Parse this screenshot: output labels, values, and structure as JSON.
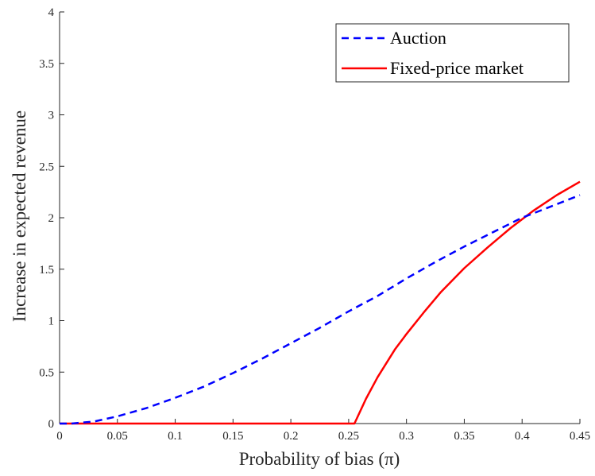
{
  "chart_data": {
    "type": "line",
    "xlabel": "Probability of bias (π)",
    "ylabel": "Increase in expected revenue",
    "xlim": [
      0,
      0.45
    ],
    "ylim": [
      0,
      4
    ],
    "xticks": [
      "0",
      "0.05",
      "0.1",
      "0.15",
      "0.2",
      "0.25",
      "0.3",
      "0.35",
      "0.4",
      "0.45"
    ],
    "yticks": [
      "0",
      "0.5",
      "1",
      "1.5",
      "2",
      "2.5",
      "3",
      "3.5",
      "4"
    ],
    "grid": false,
    "legend_position": "top-right",
    "series": [
      {
        "name": "Auction",
        "color": "#0000ff",
        "style": "dashed",
        "x": [
          0,
          0.01,
          0.02,
          0.03,
          0.05,
          0.075,
          0.1,
          0.125,
          0.15,
          0.175,
          0.2,
          0.225,
          0.25,
          0.275,
          0.3,
          0.325,
          0.35,
          0.375,
          0.4,
          0.425,
          0.45
        ],
        "y": [
          0,
          0.0,
          0.01,
          0.02,
          0.07,
          0.15,
          0.25,
          0.36,
          0.49,
          0.63,
          0.78,
          0.93,
          1.09,
          1.24,
          1.41,
          1.57,
          1.72,
          1.86,
          2.0,
          2.11,
          2.22
        ]
      },
      {
        "name": "Fixed-price market",
        "color": "#ff0000",
        "style": "solid",
        "x": [
          0,
          0.05,
          0.1,
          0.15,
          0.2,
          0.25,
          0.255,
          0.265,
          0.275,
          0.29,
          0.3,
          0.315,
          0.33,
          0.35,
          0.37,
          0.39,
          0.41,
          0.43,
          0.45
        ],
        "y": [
          0,
          0,
          0,
          0,
          0,
          0,
          0,
          0.24,
          0.45,
          0.72,
          0.87,
          1.08,
          1.28,
          1.51,
          1.71,
          1.9,
          2.07,
          2.22,
          2.35
        ]
      }
    ]
  }
}
